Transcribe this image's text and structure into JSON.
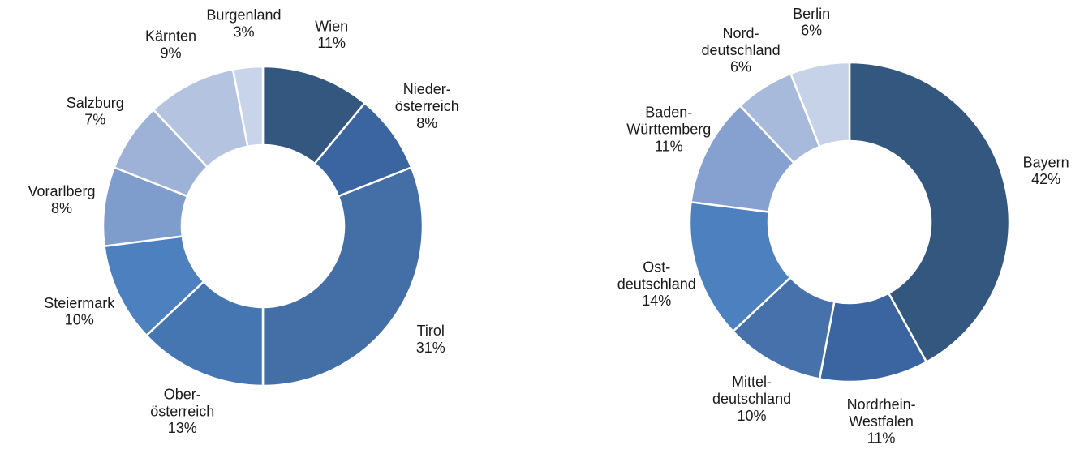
{
  "chart_data": [
    {
      "type": "donut",
      "categories": [
        "Wien",
        "Nieder-österreich",
        "Tirol",
        "Ober-österreich",
        "Steiermark",
        "Vorarlberg",
        "Salzburg",
        "Kärnten",
        "Burgenland"
      ],
      "values": [
        11,
        8,
        31,
        13,
        10,
        8,
        7,
        9,
        3
      ],
      "value_labels": [
        "11%",
        "8%",
        "31%",
        "13%",
        "10%",
        "8%",
        "7%",
        "9%",
        "3%"
      ],
      "colors": [
        "#34577f",
        "#3b65a0",
        "#436fa6",
        "#4676b2",
        "#4d80bf",
        "#7f9dcc",
        "#9db2d6",
        "#b3c3e0",
        "#c8d4e9"
      ]
    },
    {
      "type": "donut",
      "categories": [
        "Bayern",
        "Nordrhein-Westfalen",
        "Mittel-deutschland",
        "Ost-deutschland",
        "Baden-Württemberg",
        "Nord-deutschland",
        "Berlin"
      ],
      "values": [
        42,
        11,
        10,
        14,
        11,
        6,
        6
      ],
      "value_labels": [
        "42%",
        "11%",
        "10%",
        "14%",
        "11%",
        "6%",
        "6%"
      ],
      "colors": [
        "#34577f",
        "#3b65a0",
        "#4671ab",
        "#4d80bf",
        "#86a1cf",
        "#a8badc",
        "#c5d2e7"
      ]
    }
  ]
}
